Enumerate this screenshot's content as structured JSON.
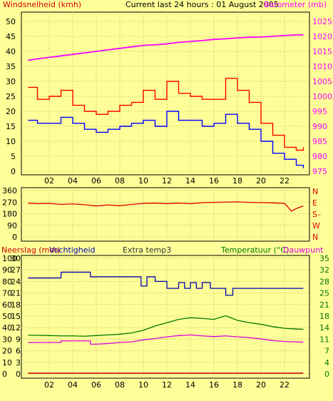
{
  "colors": {
    "background": "#ffff99",
    "wind_label": "#cc0000",
    "gust": "#ff0000",
    "wind": "#0000ff",
    "barometer": "#ff00ff",
    "direction": "#dd0000",
    "rain": "#cc0000",
    "humidity": "#0000aa",
    "temperature": "#007700",
    "dewpoint": "#dd00dd",
    "extra_temp": "#333333",
    "right_axis_temp": "#007700"
  },
  "header": {
    "wind_title": "Windsnelheid (kmh)",
    "center_title": "Current last 24 hours : 01 August 2005",
    "barometer_title": "Barometer (mb)"
  },
  "x_ticks": [
    "02",
    "04",
    "06",
    "08",
    "10",
    "12",
    "14",
    "16",
    "18",
    "20",
    "22"
  ],
  "chart_data": [
    {
      "type": "line",
      "panel": "wind",
      "y_left_label": "Windsnelheid (kmh)",
      "y_right_label": "Barometer (mb)",
      "y_left_ticks": [
        "0",
        "5",
        "10",
        "15",
        "20",
        "25",
        "30",
        "35",
        "40",
        "45",
        "50"
      ],
      "y_right_ticks": [
        "975",
        "980",
        "985",
        "990",
        "995",
        "1000",
        "1005",
        "1010",
        "1015",
        "1020",
        "1025"
      ],
      "ylim_left": [
        0,
        50
      ],
      "ylim_right": [
        975,
        1025
      ],
      "xlim": [
        0,
        24
      ],
      "grid": true,
      "series": [
        {
          "name": "gust",
          "axis": "left",
          "x": [
            0.2,
            1,
            2,
            3,
            4,
            5,
            6,
            7,
            8,
            9,
            10,
            11,
            12,
            13,
            14,
            15,
            16,
            17,
            18,
            19,
            20,
            21,
            22,
            23,
            23.6
          ],
          "values": [
            28,
            24,
            25,
            27,
            22,
            20,
            19,
            20,
            22,
            23,
            27,
            24,
            30,
            26,
            25,
            24,
            24,
            31,
            27,
            23,
            16,
            12,
            8,
            7,
            8
          ]
        },
        {
          "name": "wind",
          "axis": "left",
          "x": [
            0.2,
            1,
            2,
            3,
            4,
            5,
            6,
            7,
            8,
            9,
            10,
            11,
            12,
            13,
            14,
            15,
            16,
            17,
            18,
            19,
            20,
            21,
            22,
            23,
            23.6
          ],
          "values": [
            17,
            16,
            16,
            18,
            16,
            14,
            13,
            14,
            15,
            16,
            17,
            15,
            20,
            17,
            17,
            15,
            16,
            19,
            16,
            14,
            10,
            6,
            4,
            2,
            1
          ]
        },
        {
          "name": "barometer",
          "axis": "right",
          "x": [
            0.2,
            1,
            2,
            3,
            4,
            5,
            6,
            7,
            8,
            9,
            10,
            11,
            12,
            13,
            14,
            15,
            16,
            17,
            18,
            19,
            20,
            21,
            22,
            23,
            23.6
          ],
          "values": [
            1012,
            1012.5,
            1013,
            1013.5,
            1014,
            1014.5,
            1015,
            1015.5,
            1016,
            1016.5,
            1017,
            1017.2,
            1017.5,
            1018,
            1018.3,
            1018.6,
            1019,
            1019.2,
            1019.5,
            1019.7,
            1019.8,
            1020,
            1020.3,
            1020.5,
            1020.5
          ]
        }
      ]
    },
    {
      "type": "line",
      "panel": "direction",
      "y_left_ticks": [
        "0",
        "90",
        "180",
        "270",
        "360"
      ],
      "y_right_ticks": [
        "N",
        "W",
        "S",
        "E",
        "N"
      ],
      "y_right_extra": "-",
      "ylim": [
        0,
        360
      ],
      "xlim": [
        0,
        24
      ],
      "grid": true,
      "series": [
        {
          "name": "wind direction",
          "x": [
            0.2,
            1,
            2,
            3,
            4,
            5,
            6,
            7,
            8,
            9,
            10,
            11,
            12,
            13,
            14,
            15,
            16,
            17,
            18,
            19,
            20,
            21,
            22,
            22.6,
            23,
            23.6
          ],
          "values": [
            262,
            258,
            260,
            252,
            256,
            250,
            240,
            248,
            242,
            252,
            260,
            262,
            258,
            262,
            258,
            265,
            268,
            270,
            272,
            268,
            266,
            264,
            260,
            200,
            220,
            240
          ]
        }
      ]
    },
    {
      "type": "line",
      "panel": "climate",
      "labels": {
        "rain": "Neerslag (mm)",
        "humidity": "Vochtigheid",
        "extra": "Extra temp3",
        "temperature": "Temperatuur (°C)",
        "dewpoint": "Dauwpunt"
      },
      "humidity_ticks": [
        "0",
        "10",
        "20",
        "30",
        "40",
        "50",
        "60",
        "70",
        "80",
        "90",
        "100"
      ],
      "extra_ticks": [
        "0",
        "3",
        "6",
        "9",
        "12",
        "15",
        "18",
        "21",
        "24",
        "27",
        "30"
      ],
      "temp_ticks": [
        "0",
        "4",
        "7",
        "11",
        "14",
        "18",
        "21",
        "25",
        "28",
        "32",
        "35"
      ],
      "ylim_humidity": [
        0,
        100
      ],
      "ylim_temp": [
        0,
        35
      ],
      "xlim": [
        0,
        24
      ],
      "grid": true,
      "series": [
        {
          "name": "rain",
          "x": [
            0.2,
            23.6
          ],
          "values": [
            0.2,
            0.2
          ]
        },
        {
          "name": "humidity",
          "x": [
            0.2,
            3,
            3.01,
            5.5,
            5.51,
            9.8,
            9.81,
            10.3,
            10.31,
            11,
            11.01,
            12,
            12.01,
            13,
            13.01,
            13.5,
            13.51,
            14,
            14.01,
            14.5,
            14.51,
            15,
            15.01,
            15.7,
            15.71,
            16.3,
            16.31,
            17,
            17.01,
            17.6,
            17.61,
            23.6
          ],
          "values": [
            83,
            83,
            88,
            88,
            84,
            84,
            76,
            76,
            84,
            84,
            80,
            80,
            74,
            74,
            79,
            79,
            74,
            74,
            79,
            79,
            74,
            74,
            79,
            79,
            74,
            74,
            74,
            74,
            68,
            68,
            74,
            74
          ]
        },
        {
          "name": "temperature",
          "x": [
            0.2,
            1,
            2,
            3,
            4,
            5,
            6,
            7,
            8,
            9,
            10,
            11,
            12,
            13,
            14,
            15,
            16,
            17,
            18,
            19,
            20,
            21,
            22,
            23,
            23.6
          ],
          "values": [
            11.7,
            11.7,
            11.6,
            11.5,
            11.5,
            11.4,
            11.6,
            11.8,
            12,
            12.4,
            13.2,
            14.5,
            15.5,
            16.5,
            17,
            16.8,
            16.5,
            17.6,
            16.2,
            15.5,
            15,
            14.3,
            13.8,
            13.6,
            13.5
          ]
        },
        {
          "name": "dewpoint",
          "x": [
            0.2,
            3,
            3.01,
            5.5,
            5.51,
            6,
            7,
            8,
            9,
            10,
            11,
            12,
            13,
            14,
            15,
            16,
            17,
            18,
            19,
            20,
            21,
            22,
            23,
            23.6
          ],
          "values": [
            9.5,
            9.5,
            10,
            10,
            9,
            9,
            9.2,
            9.5,
            9.7,
            10.3,
            10.7,
            11.2,
            11.6,
            11.8,
            11.5,
            11.3,
            11.5,
            11.2,
            11,
            10.6,
            10.1,
            9.8,
            9.7,
            9.6
          ]
        }
      ]
    }
  ]
}
